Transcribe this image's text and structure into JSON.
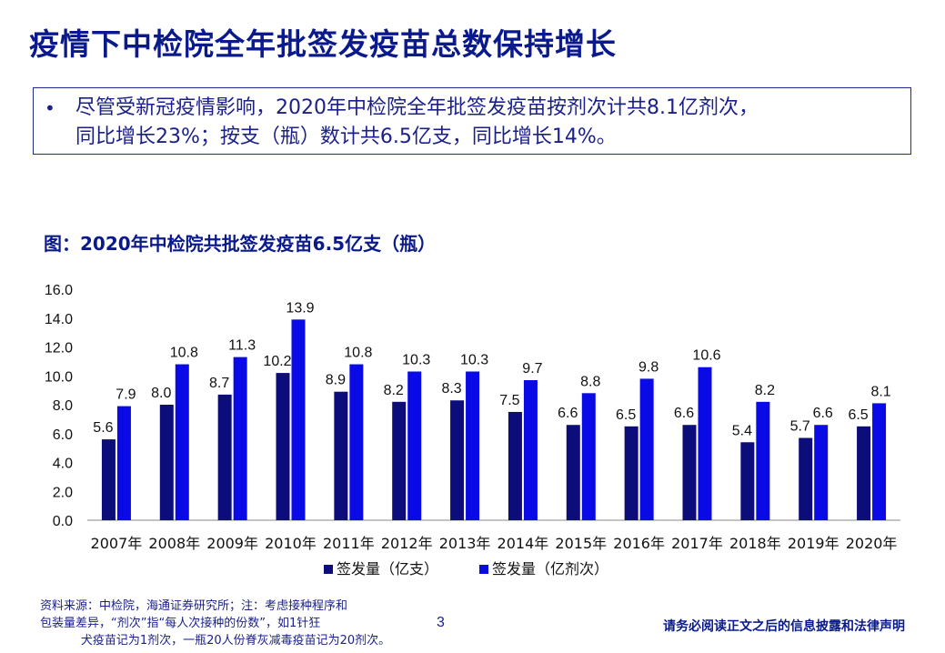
{
  "slide": {
    "title": "疫情下中检院全年批签发疫苗总数保持增长",
    "bullet": "•",
    "summary_line1": "尽管受新冠疫情影响，2020年中检院全年批签发疫苗按剂次计共8.1亿剂次，",
    "summary_line2": "同比增长23%；按支（瓶）数计共6.5亿支，同比增长14%。",
    "footnote_line1": "资料来源：中检院，海通证券研究所；注：考虑接种程序和",
    "footnote_line2": "包装量差异，“剂次”指“每人次接种的份数”，如1针狂",
    "footnote_line3": "犬疫苗记为1剂次，一瓶20人份脊灰减毒疫苗记为20剂次。",
    "page_number": "3",
    "disclaimer": "请务必阅读正文之后的信息披露和法律声明"
  },
  "chart_data": {
    "type": "bar",
    "title": "图：2020年中检院共批签发疫苗6.5亿支（瓶）",
    "categories": [
      "2007年",
      "2008年",
      "2009年",
      "2010年",
      "2011年",
      "2012年",
      "2013年",
      "2014年",
      "2015年",
      "2016年",
      "2017年",
      "2018年",
      "2019年",
      "2020年"
    ],
    "series": [
      {
        "name": "签发量（亿支）",
        "color": "#0c0c7a",
        "values": [
          5.6,
          8.0,
          8.7,
          10.2,
          8.9,
          8.2,
          8.3,
          7.5,
          6.6,
          6.5,
          6.6,
          5.4,
          5.7,
          6.5
        ]
      },
      {
        "name": "签发量（亿剂次）",
        "color": "#0a0ae6",
        "values": [
          7.9,
          10.8,
          11.3,
          13.9,
          10.8,
          10.3,
          10.3,
          9.7,
          8.8,
          9.8,
          10.6,
          8.2,
          6.6,
          8.1
        ]
      }
    ],
    "ylim": [
      0,
      16
    ],
    "yticks": [
      "0.0",
      "2.0",
      "4.0",
      "6.0",
      "8.0",
      "10.0",
      "12.0",
      "14.0",
      "16.0"
    ],
    "grid": false,
    "legend": "bottom-center"
  }
}
